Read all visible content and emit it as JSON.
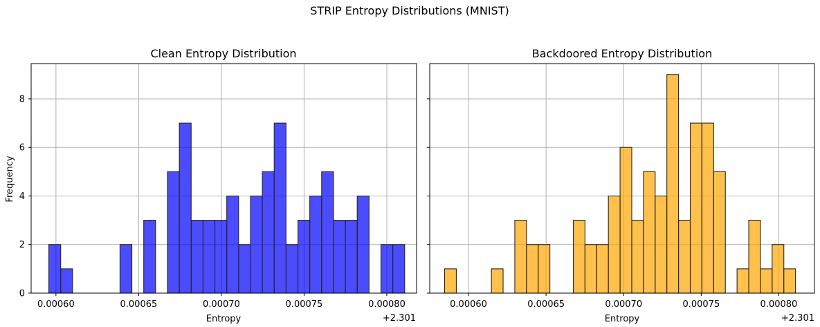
{
  "figure": {
    "title": "STRIP Entropy Distributions (MNIST)"
  },
  "chart_data": [
    {
      "type": "bar",
      "title": "Clean Entropy Distribution",
      "xlabel": "Entropy",
      "ylabel": "Frequency",
      "offset_label": "+2.301",
      "color": "#0000ff",
      "grid": true,
      "xlim": [
        0.000585,
        0.000818
      ],
      "ylim": [
        0,
        9.45
      ],
      "xticks": [
        0.0006,
        0.00065,
        0.0007,
        0.00075,
        0.0008
      ],
      "xtick_labels": [
        "0.00060",
        "0.00065",
        "0.00070",
        "0.00075",
        "0.00080"
      ],
      "yticks": [
        0,
        2,
        4,
        6,
        8
      ],
      "ytick_labels": [
        "0",
        "2",
        "4",
        "6",
        "8"
      ],
      "bin_width": 7.17e-06,
      "bin_start": 0.0005957,
      "values": [
        2,
        1,
        0,
        0,
        0,
        0,
        2,
        0,
        3,
        0,
        5,
        7,
        3,
        3,
        3,
        4,
        2,
        4,
        5,
        7,
        2,
        3,
        4,
        5,
        3,
        3,
        4,
        0,
        2,
        2
      ]
    },
    {
      "type": "bar",
      "title": "Backdoored Entropy Distribution",
      "xlabel": "Entropy",
      "ylabel": "",
      "offset_label": "+2.301",
      "color": "#ffa500",
      "grid": true,
      "xlim": [
        0.000575,
        0.000823
      ],
      "ylim": [
        0,
        9.45
      ],
      "xticks": [
        0.0006,
        0.00065,
        0.0007,
        0.00075,
        0.0008
      ],
      "xtick_labels": [
        "0.00060",
        "0.00065",
        "0.00070",
        "0.00075",
        "0.00080"
      ],
      "yticks": [
        0,
        2,
        4,
        6,
        8
      ],
      "ytick_labels": [
        "",
        "",
        "",
        "",
        ""
      ],
      "bin_width": 7.54e-06,
      "bin_start": 0.0005846,
      "values": [
        1,
        0,
        0,
        0,
        1,
        0,
        3,
        2,
        2,
        0,
        0,
        3,
        2,
        2,
        4,
        6,
        3,
        5,
        4,
        9,
        3,
        7,
        7,
        5,
        0,
        1,
        3,
        1,
        2,
        1
      ]
    }
  ]
}
